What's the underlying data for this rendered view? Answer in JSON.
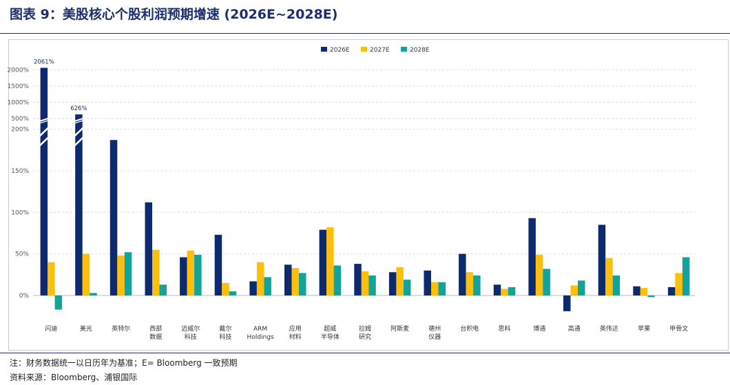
{
  "header": {
    "title": "图表 9：美股核心个股利润预期增速 (2026E~2028E)"
  },
  "footer": {
    "note": "注：财务数据统一以日历年为基准；E= Bloomberg 一致预期",
    "source": "资料来源：Bloomberg、浦银国际"
  },
  "colors": {
    "s2026": "#0e2a6e",
    "s2027": "#fbbf0c",
    "s2028": "#13a39a"
  },
  "chart_data": {
    "type": "bar",
    "y_axis": {
      "broken": true,
      "lower_ticks": [
        "0%",
        "50%",
        "100%",
        "150%",
        "200%"
      ],
      "upper_ticks": [
        "500%",
        "1000%",
        "1500%",
        "2000%"
      ]
    },
    "grid": "horizontal-dashed",
    "legend": "top-center",
    "categories": [
      "闪迪",
      "美光",
      "英特尔",
      "西部\n数据",
      "迈威尔\n科技",
      "戴尔\n科技",
      "ARM\nHoldings",
      "应用\n材料",
      "超威\n半导体",
      "拉姆\n研究",
      "阿斯麦",
      "德州\n仪器",
      "台积电",
      "思科",
      "博通",
      "高通",
      "英伟达",
      "苹果",
      "甲骨文"
    ],
    "series": [
      {
        "name": "2026E",
        "values": [
          2061,
          626,
          187,
          112,
          46,
          73,
          17,
          37,
          79,
          38,
          28,
          30,
          50,
          13,
          93,
          -19,
          85,
          11,
          10
        ]
      },
      {
        "name": "2027E",
        "values": [
          40,
          50,
          48,
          55,
          54,
          15,
          40,
          33,
          82,
          29,
          34,
          16,
          28,
          8,
          49,
          12,
          45,
          9,
          27
        ]
      },
      {
        "name": "2028E",
        "values": [
          -17,
          3,
          52,
          13,
          49,
          5,
          22,
          27,
          36,
          24,
          19,
          16,
          24,
          10,
          32,
          18,
          24,
          -2,
          46
        ]
      }
    ],
    "data_labels": [
      {
        "category": "闪迪",
        "series": "2026E",
        "text": "2061%"
      },
      {
        "category": "美光",
        "series": "2026E",
        "text": "626%"
      }
    ]
  }
}
